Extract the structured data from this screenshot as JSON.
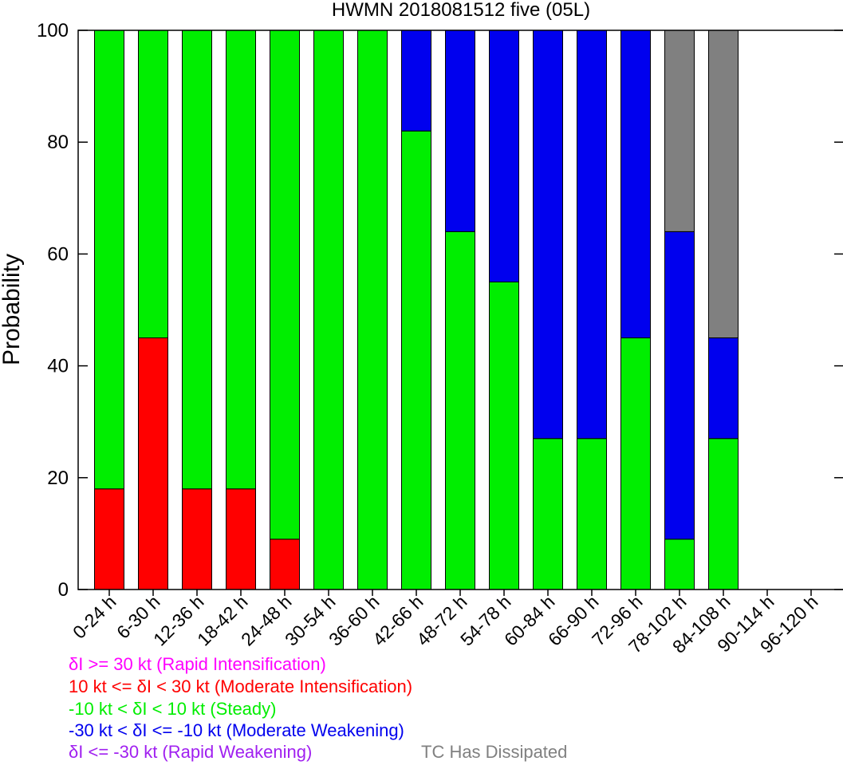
{
  "chart_data": {
    "type": "bar",
    "stacked": true,
    "title": "HWMN 2018081512 five (05L)",
    "ylabel": "Probability",
    "xlabel": "",
    "ylim": [
      0,
      100
    ],
    "yticks": [
      0,
      20,
      40,
      60,
      80,
      100
    ],
    "grid": false,
    "legend_position": "bottom-left",
    "categories": [
      "0-24 h",
      "6-30 h",
      "12-36 h",
      "18-42 h",
      "24-48 h",
      "30-54 h",
      "36-60 h",
      "42-66 h",
      "48-72 h",
      "54-78 h",
      "60-84 h",
      "66-90 h",
      "72-96 h",
      "78-102 h",
      "84-108 h",
      "90-114 h",
      "96-120 h"
    ],
    "series": [
      {
        "name": "δI >= 30 kt (Rapid Intensification)",
        "color": "#ff00ff",
        "values": [
          0,
          0,
          0,
          0,
          0,
          0,
          0,
          0,
          0,
          0,
          0,
          0,
          0,
          0,
          0,
          0,
          0
        ]
      },
      {
        "name": "10 kt <= δI < 30 kt (Moderate Intensification)",
        "color": "#ff0000",
        "values": [
          18,
          45,
          18,
          18,
          9,
          0,
          0,
          0,
          0,
          0,
          0,
          0,
          0,
          0,
          0,
          0,
          0
        ]
      },
      {
        "name": "-10 kt < δI < 10 kt (Steady)",
        "color": "#00ee00",
        "values": [
          82,
          55,
          82,
          82,
          91,
          100,
          100,
          82,
          64,
          55,
          27,
          27,
          45,
          9,
          27,
          0,
          0
        ]
      },
      {
        "name": "-30 kt < δI <= -10 kt (Moderate Weakening)",
        "color": "#0000ee",
        "values": [
          0,
          0,
          0,
          0,
          0,
          0,
          0,
          18,
          36,
          45,
          73,
          73,
          55,
          55,
          18,
          0,
          0
        ]
      },
      {
        "name": "δI <= -30 kt (Rapid Weakening)",
        "color": "#a020f0",
        "values": [
          0,
          0,
          0,
          0,
          0,
          0,
          0,
          0,
          0,
          0,
          0,
          0,
          0,
          0,
          0,
          0,
          0
        ]
      },
      {
        "name": "TC Has Dissipated",
        "color": "#808080",
        "values": [
          0,
          0,
          0,
          0,
          0,
          0,
          0,
          0,
          0,
          0,
          0,
          0,
          0,
          36,
          55,
          0,
          0
        ]
      }
    ]
  }
}
